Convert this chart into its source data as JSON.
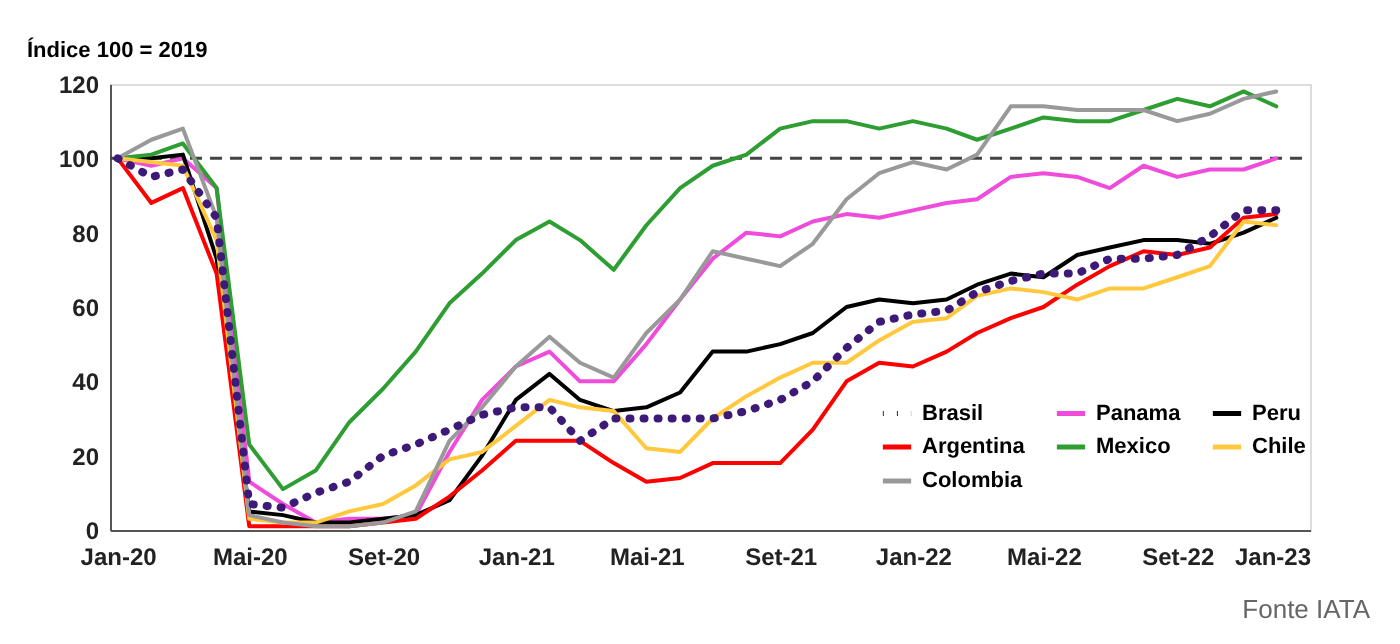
{
  "chart_data": {
    "type": "line",
    "ylabel": "Índice 100 = 2019",
    "x": [
      "2020-01",
      "2020-02",
      "2020-03",
      "2020-04",
      "2020-05",
      "2020-06",
      "2020-07",
      "2020-08",
      "2020-09",
      "2020-10",
      "2020-11",
      "2020-12",
      "2021-01",
      "2021-02",
      "2021-03",
      "2021-04",
      "2021-05",
      "2021-06",
      "2021-07",
      "2021-08",
      "2021-09",
      "2021-10",
      "2021-11",
      "2021-12",
      "2022-01",
      "2022-02",
      "2022-03",
      "2022-04",
      "2022-05",
      "2022-06",
      "2022-07",
      "2022-08",
      "2022-09",
      "2022-10",
      "2022-11",
      "2022-12"
    ],
    "series": [
      {
        "name": "Brasil",
        "color": "#3d1a78",
        "line_style": "dotted",
        "values": [
          100,
          95,
          97,
          84,
          7,
          6,
          10,
          13,
          20,
          23,
          27,
          31,
          33,
          33,
          24,
          30,
          30,
          30,
          30,
          32,
          35,
          40,
          49,
          56,
          58,
          59,
          64,
          67,
          69,
          69,
          73,
          73,
          74,
          79,
          86,
          86
        ]
      },
      {
        "name": "Panama",
        "color": "#f04cdc",
        "values": [
          100,
          98,
          100,
          92,
          13,
          7,
          2,
          3,
          3,
          4,
          21,
          35,
          44,
          48,
          40,
          40,
          50,
          62,
          73,
          80,
          79,
          83,
          85,
          84,
          86,
          88,
          89,
          95,
          96,
          95,
          92,
          98,
          95,
          97,
          97,
          100
        ]
      },
      {
        "name": "Peru",
        "color": "#000000",
        "values": [
          100,
          100,
          101,
          73,
          5,
          4,
          2,
          2,
          3,
          4,
          8,
          20,
          35,
          42,
          35,
          32,
          33,
          37,
          48,
          48,
          50,
          53,
          60,
          62,
          61,
          62,
          66,
          69,
          68,
          74,
          76,
          78,
          78,
          77,
          80,
          84
        ]
      },
      {
        "name": "Argentina",
        "color": "#ff0000",
        "values": [
          100,
          88,
          92,
          69,
          1,
          1,
          1,
          1,
          2,
          3,
          9,
          16,
          24,
          24,
          24,
          18,
          13,
          14,
          18,
          18,
          18,
          27,
          40,
          45,
          44,
          48,
          53,
          57,
          60,
          66,
          71,
          75,
          74,
          76,
          84,
          85
        ]
      },
      {
        "name": "Mexico",
        "color": "#2e9e32",
        "values": [
          100,
          101,
          104,
          92,
          23,
          11,
          16,
          29,
          38,
          48,
          61,
          69,
          78,
          83,
          78,
          70,
          82,
          92,
          98,
          101,
          108,
          110,
          110,
          108,
          110,
          108,
          105,
          108,
          111,
          110,
          110,
          113,
          116,
          114,
          118,
          114
        ]
      },
      {
        "name": "Chile",
        "color": "#ffc83d",
        "values": [
          100,
          99,
          98,
          78,
          3,
          2,
          2,
          5,
          7,
          12,
          19,
          21,
          28,
          35,
          33,
          32,
          22,
          21,
          30,
          36,
          41,
          45,
          45,
          51,
          56,
          57,
          63,
          65,
          64,
          62,
          65,
          65,
          68,
          71,
          83,
          82
        ]
      },
      {
        "name": "Colombia",
        "color": "#999999",
        "values": [
          100,
          105,
          108,
          84,
          4,
          2,
          1,
          1,
          2,
          5,
          24,
          33,
          44,
          52,
          45,
          41,
          53,
          62,
          75,
          73,
          71,
          77,
          89,
          96,
          99,
          97,
          101,
          114,
          114,
          113,
          113,
          113,
          110,
          112,
          116,
          118
        ]
      }
    ],
    "xlim": [
      "2019-12-25",
      "2023-01"
    ],
    "xticks": [
      {
        "value": "2020-01",
        "label": "Jan-20"
      },
      {
        "value": "2020-05",
        "label": "Mai-20"
      },
      {
        "value": "2020-09",
        "label": "Set-20"
      },
      {
        "value": "2021-01",
        "label": "Jan-21"
      },
      {
        "value": "2021-05",
        "label": "Mai-21"
      },
      {
        "value": "2021-09",
        "label": "Set-21"
      },
      {
        "value": "2022-01",
        "label": "Jan-22"
      },
      {
        "value": "2022-05",
        "label": "Mai-22"
      },
      {
        "value": "2022-09",
        "label": "Set-22"
      },
      {
        "value": "2023-01",
        "label": "Jan-23"
      }
    ],
    "ylim": [
      0,
      120
    ],
    "yticks": [
      0,
      20,
      40,
      60,
      80,
      100,
      120
    ],
    "ref_lines": [
      {
        "axis": "y",
        "value": 100,
        "line_style": "dashed",
        "color": "#444444"
      }
    ],
    "annotations": [
      "Fonte IATA"
    ],
    "grid": false,
    "legend": "bottom right",
    "marker": "none",
    "line_style": "solid"
  }
}
